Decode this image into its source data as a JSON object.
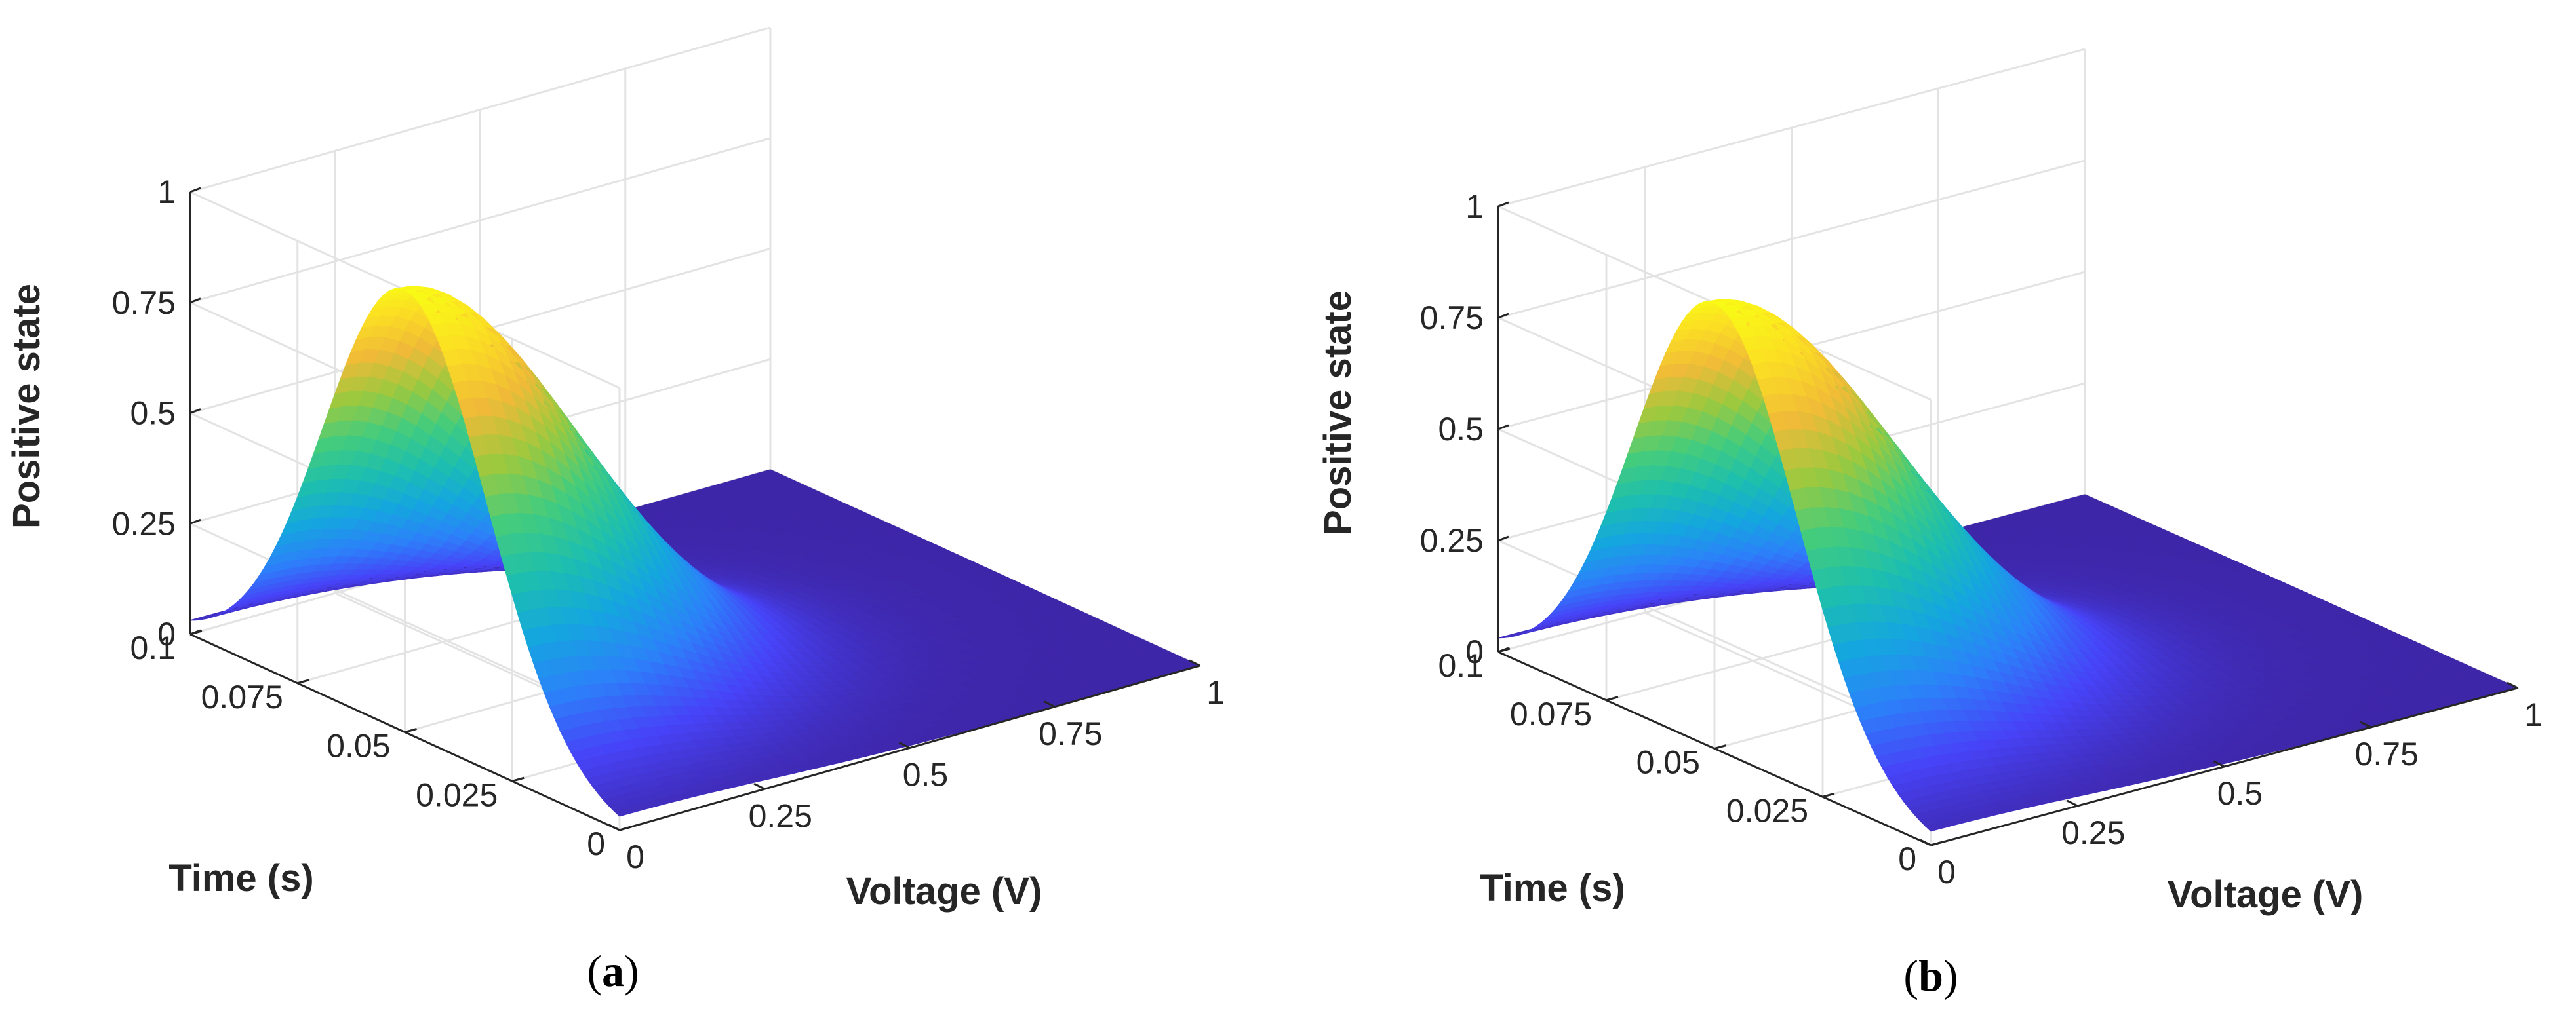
{
  "chart_data": [
    {
      "type": "surface",
      "panel_label": "a",
      "xlabel": "Voltage (V)",
      "ylabel": "Time (s)",
      "zlabel": "Positive state",
      "xlim": [
        0,
        1
      ],
      "ylim": [
        0,
        0.1
      ],
      "zlim": [
        0,
        1
      ],
      "xticks": [
        0,
        0.25,
        0.5,
        0.75,
        1
      ],
      "xtick_labels": [
        "0",
        "0.25",
        "0.5",
        "0.75",
        "1"
      ],
      "yticks": [
        0,
        0.025,
        0.05,
        0.075,
        0.1
      ],
      "ytick_labels": [
        "0",
        "0.025",
        "0.05",
        "0.075",
        "0.1"
      ],
      "zticks": [
        0,
        0.25,
        0.5,
        0.75,
        1
      ],
      "ztick_labels": [
        "0",
        "0.25",
        "0.5",
        "0.75",
        "1"
      ],
      "grid": true,
      "colormap": "parula",
      "peak": {
        "voltage": 0.0,
        "time": 0.05,
        "state": 1.0
      },
      "ridge_width_time": 0.019,
      "voltage_decay": 0.38
    },
    {
      "type": "surface",
      "panel_label": "b",
      "xlabel": "Voltage (V)",
      "ylabel": "Time (s)",
      "zlabel": "Positive state",
      "xlim": [
        0,
        1
      ],
      "ylim": [
        0,
        0.1
      ],
      "zlim": [
        0,
        1
      ],
      "xticks": [
        0,
        0.25,
        0.5,
        0.75,
        1
      ],
      "xtick_labels": [
        "0",
        "0.25",
        "0.5",
        "0.75",
        "1"
      ],
      "yticks": [
        0,
        0.025,
        0.05,
        0.075,
        0.1
      ],
      "ytick_labels": [
        "0",
        "0.025",
        "0.05",
        "0.075",
        "0.1"
      ],
      "zticks": [
        0,
        0.25,
        0.5,
        0.75,
        1
      ],
      "ztick_labels": [
        "0",
        "0.25",
        "0.5",
        "0.75",
        "1"
      ],
      "grid": true,
      "colormap": "parula",
      "peak": {
        "voltage": 0.0,
        "time": 0.05,
        "state": 1.0
      },
      "ridge_width_time": 0.019,
      "voltage_decay": 0.4
    }
  ],
  "colors": {
    "tick_text": "#262626",
    "grid": "#e3e3e3",
    "parula": [
      "#3e26a8",
      "#4743f8",
      "#2c81f9",
      "#14a7de",
      "#1ebfad",
      "#45cc7c",
      "#9cc93e",
      "#f0ba38",
      "#fbdd24",
      "#f9fb15"
    ]
  }
}
